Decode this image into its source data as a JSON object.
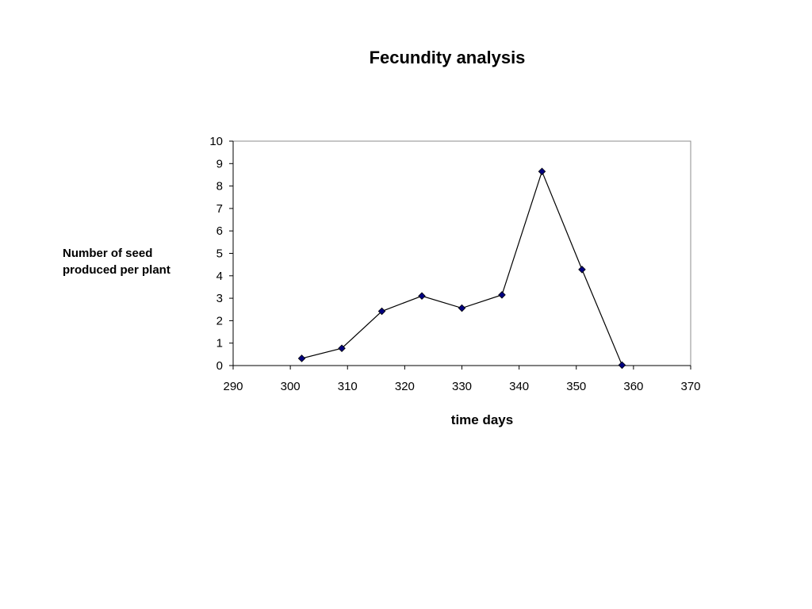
{
  "chart_data": {
    "type": "line",
    "title": "Fecundity analysis",
    "xlabel": "time days",
    "ylabel": "Number of seed produced per plant",
    "xlim": [
      290,
      370
    ],
    "ylim": [
      0,
      10
    ],
    "x_ticks": [
      "290",
      "300",
      "310",
      "320",
      "330",
      "340",
      "350",
      "360",
      "370"
    ],
    "y_ticks": [
      "0",
      "1",
      "2",
      "3",
      "4",
      "5",
      "6",
      "7",
      "8",
      "9",
      "10"
    ],
    "grid": false,
    "legend": "none",
    "series": [
      {
        "x": [
          302,
          309,
          316,
          323,
          330,
          337,
          344,
          351,
          358
        ],
        "y": [
          0.32,
          0.77,
          2.42,
          3.1,
          2.56,
          3.15,
          8.65,
          4.28,
          0.02
        ],
        "color": "#000080",
        "marker": "diamond"
      }
    ]
  }
}
